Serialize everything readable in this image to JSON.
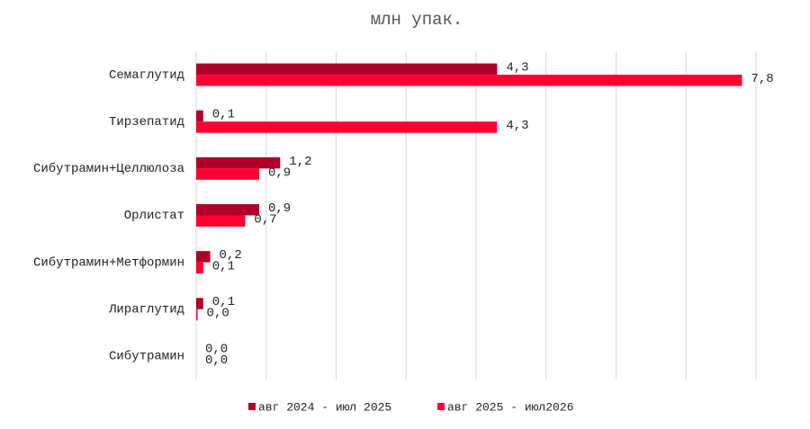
{
  "chart_data": {
    "type": "hbar",
    "title": "млн упак.",
    "categories": [
      "Семаглутид",
      "Тирзепатид",
      "Сибутрамин+Целлюлоза",
      "Орлистат",
      "Сибутрамин+Метформин",
      "Лираглутид",
      "Сибутрамин"
    ],
    "series": [
      {
        "name": "авг 2024 - июл 2025",
        "color": "#b0002a",
        "values": [
          4.3,
          0.1,
          1.2,
          0.9,
          0.2,
          0.1,
          0
        ],
        "value_labels": [
          "4,3",
          "0,1",
          "1,2",
          "0,9",
          "0,2",
          "0,1",
          "0,0"
        ]
      },
      {
        "name": "авг 2025 - июл2026",
        "color": "#ff0033",
        "values": [
          7.8,
          4.3,
          0.9,
          0.7,
          0.1,
          0.02,
          0
        ],
        "value_labels": [
          "7,8",
          "4,3",
          "0,9",
          "0,7",
          "0,1",
          "0,0",
          "0,0"
        ]
      }
    ],
    "xlim": [
      0,
      8
    ],
    "xticks": [
      0,
      1,
      2,
      3,
      4,
      5,
      6,
      7,
      8
    ],
    "x_tick_labels": false,
    "grid": true,
    "legend": "bottom"
  }
}
